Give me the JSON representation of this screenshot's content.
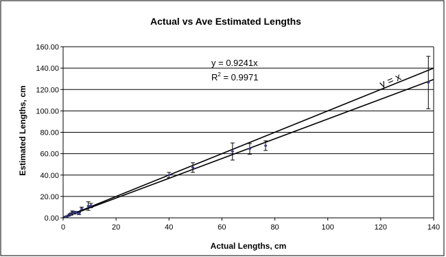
{
  "chart_data": {
    "type": "scatter",
    "title": "Actual vs Ave Estimated Lengths",
    "xlabel": "Actual Lengths, cm",
    "ylabel": "Estimated Lengths, cm",
    "xlim": [
      0,
      140
    ],
    "ylim": [
      0,
      160
    ],
    "x_ticks": [
      "0",
      "20",
      "40",
      "60",
      "80",
      "100",
      "120",
      "140"
    ],
    "y_ticks": [
      "0.00",
      "20.00",
      "40.00",
      "60.00",
      "80.00",
      "100.00",
      "120.00",
      "140.00",
      "160.00"
    ],
    "grid": "horizontal",
    "points": [
      {
        "x": 1.0,
        "y": 1.0,
        "err": 0.5
      },
      {
        "x": 2.0,
        "y": 2.0,
        "err": 0.5
      },
      {
        "x": 2.5,
        "y": 3.0,
        "err": 0.7
      },
      {
        "x": 3.0,
        "y": 3.5,
        "err": 1.0
      },
      {
        "x": 3.5,
        "y": 5.5,
        "err": 1.0
      },
      {
        "x": 4.0,
        "y": 4.5,
        "err": 1.0
      },
      {
        "x": 5.0,
        "y": 5.0,
        "err": 1.0
      },
      {
        "x": 6.0,
        "y": 4.0,
        "err": 1.0
      },
      {
        "x": 7.0,
        "y": 8.5,
        "err": 1.5
      },
      {
        "x": 9.5,
        "y": 11.0,
        "err": 4.0
      },
      {
        "x": 10.5,
        "y": 11.5,
        "err": 2.0
      },
      {
        "x": 40.0,
        "y": 40.0,
        "err": 2.5
      },
      {
        "x": 49.0,
        "y": 47.0,
        "err": 4.5
      },
      {
        "x": 64.0,
        "y": 62.0,
        "err": 8.0
      },
      {
        "x": 70.5,
        "y": 64.5,
        "err": 5.0
      },
      {
        "x": 76.5,
        "y": 67.5,
        "err": 4.5
      },
      {
        "x": 138.0,
        "y": 126.5,
        "err": 24.5
      }
    ],
    "lines": [
      {
        "label": "y = x",
        "slope": 1.0
      },
      {
        "label": "y = 0.9241x",
        "slope": 0.9241
      }
    ],
    "annotations": {
      "equation": "y = 0.9241x",
      "r2_prefix": "R",
      "r2_sup": "2",
      "r2_value": " = 0.9971",
      "identity_label": "y = x"
    },
    "colors": {
      "marker": "#3b3b8c",
      "line": "#000000",
      "grid": "#000000"
    }
  }
}
